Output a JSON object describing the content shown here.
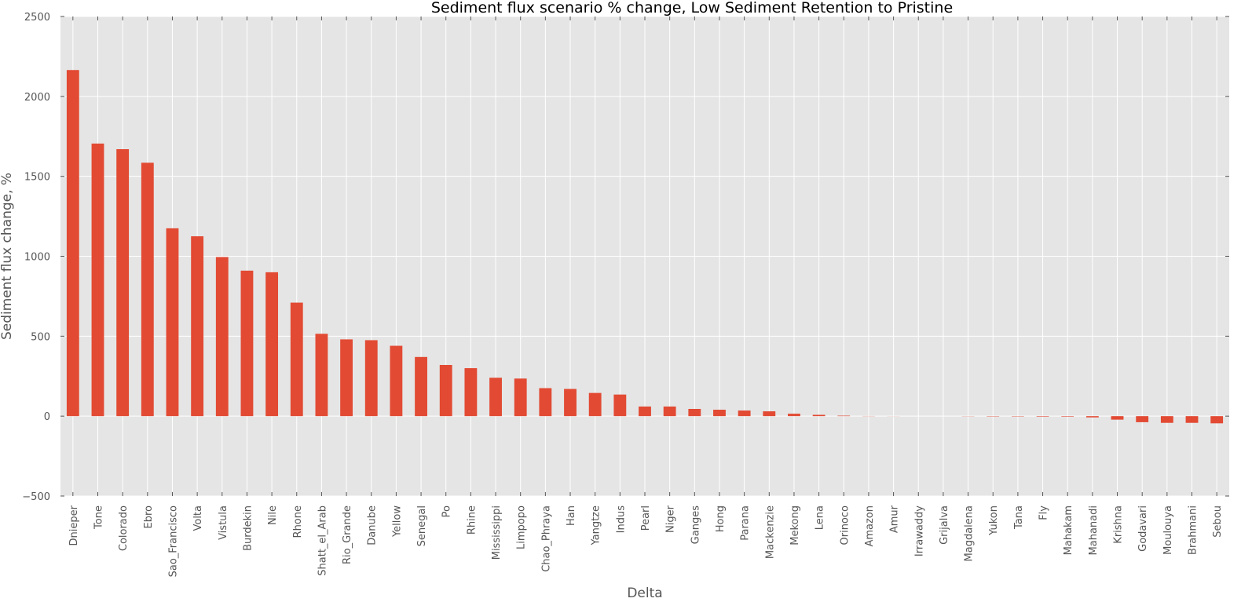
{
  "chart_data": {
    "type": "bar",
    "title": "Sediment flux scenario % change, Low Sediment Retention to Pristine",
    "xlabel": "Delta",
    "ylabel": "Sediment flux change, %",
    "ylim": [
      -500,
      2500
    ],
    "yticks": [
      -500,
      0,
      500,
      1000,
      1500,
      2000,
      2500
    ],
    "ytick_labels": [
      "−500",
      "0",
      "500",
      "1000",
      "1500",
      "2000",
      "2500"
    ],
    "grid": true,
    "colors": {
      "bar": "#e24a33",
      "plot_bg": "#e5e5e5",
      "grid": "#ffffff",
      "tick_text": "#555555"
    },
    "categories": [
      "Dnieper",
      "Tone",
      "Colorado",
      "Ebro",
      "Sao_Francisco",
      "Volta",
      "Vistula",
      "Burdekin",
      "Nile",
      "Rhone",
      "Shatt_el_Arab",
      "Rio_Grande",
      "Danube",
      "Yellow",
      "Senegal",
      "Po",
      "Rhine",
      "Mississippi",
      "Limpopo",
      "Chao_Phraya",
      "Han",
      "Yangtze",
      "Indus",
      "Pearl",
      "Niger",
      "Ganges",
      "Hong",
      "Parana",
      "Mackenzie",
      "Mekong",
      "Lena",
      "Orinoco",
      "Amazon",
      "Amur",
      "Irrawaddy",
      "Grijalva",
      "Magdalena",
      "Yukon",
      "Tana",
      "Fly",
      "Mahakam",
      "Mahanadi",
      "Krishna",
      "Godavari",
      "Moulouya",
      "Brahmani",
      "Sebou"
    ],
    "values": [
      2165,
      1705,
      1670,
      1585,
      1175,
      1125,
      995,
      910,
      900,
      710,
      515,
      480,
      475,
      440,
      370,
      320,
      300,
      240,
      235,
      175,
      170,
      145,
      135,
      60,
      60,
      45,
      40,
      35,
      30,
      15,
      8,
      3,
      1,
      0.5,
      0,
      0,
      -1,
      -2,
      -2,
      -3,
      -3,
      -8,
      -22,
      -38,
      -42,
      -42,
      -45
    ]
  }
}
